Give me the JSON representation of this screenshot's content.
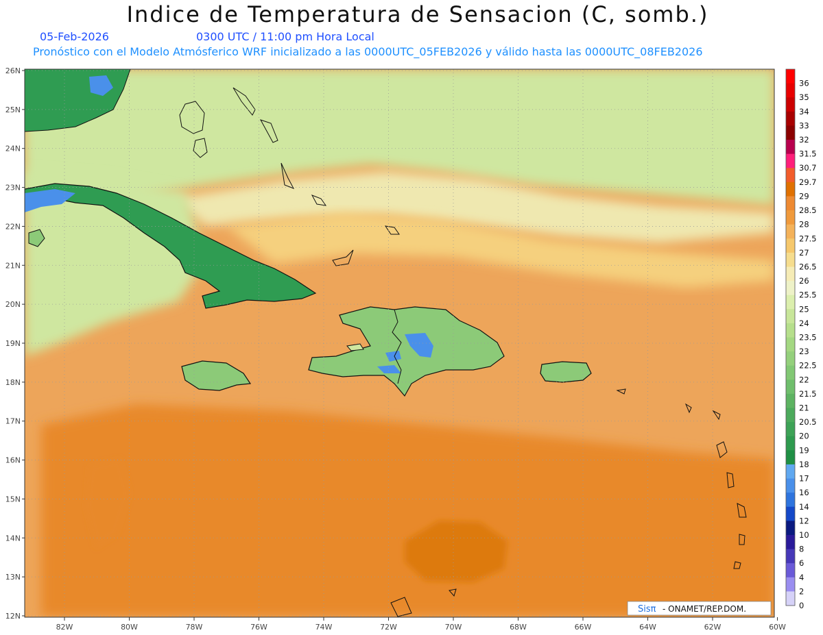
{
  "title": "Indice de Temperatura de Sensacion (C, somb.)",
  "date": "05-Feb-2026",
  "time": "0300 UTC / 11:00 pm Hora Local",
  "subtitle": "Pronóstico con el Modelo Atmósferico WRF inicializado a las 0000UTC_05FEB2026 y válido hasta las  0000UTC_08FEB2026",
  "lat_ticks": [
    "26N",
    "25N",
    "24N",
    "23N",
    "22N",
    "21N",
    "20N",
    "19N",
    "18N",
    "17N",
    "16N",
    "15N",
    "14N",
    "13N",
    "12N"
  ],
  "lon_ticks": [
    "82W",
    "80W",
    "78W",
    "76W",
    "74W",
    "72W",
    "70W",
    "68W",
    "66W",
    "64W",
    "62W",
    "60W"
  ],
  "colorbar": [
    {
      "label": "36",
      "color": "#ff0000"
    },
    {
      "label": "35",
      "color": "#e80000"
    },
    {
      "label": "34",
      "color": "#cc0000"
    },
    {
      "label": "33",
      "color": "#a80000"
    },
    {
      "label": "32",
      "color": "#8b0000"
    },
    {
      "label": "31.5",
      "color": "#b8004e"
    },
    {
      "label": "30.7",
      "color": "#ff1f7a"
    },
    {
      "label": "29.7",
      "color": "#f25c2b"
    },
    {
      "label": "29",
      "color": "#e07000"
    },
    {
      "label": "28.5",
      "color": "#ee8a32"
    },
    {
      "label": "28",
      "color": "#f09a3c"
    },
    {
      "label": "27.5",
      "color": "#f4b25a"
    },
    {
      "label": "27",
      "color": "#f6c86c"
    },
    {
      "label": "26.5",
      "color": "#f6dd8e"
    },
    {
      "label": "26",
      "color": "#f6ecb6"
    },
    {
      "label": "25.5",
      "color": "#eef2c8"
    },
    {
      "label": "25",
      "color": "#dcefae"
    },
    {
      "label": "24",
      "color": "#c8e69a"
    },
    {
      "label": "23.5",
      "color": "#b6df8c"
    },
    {
      "label": "23",
      "color": "#a4d882"
    },
    {
      "label": "22.5",
      "color": "#94d07c"
    },
    {
      "label": "22",
      "color": "#82c874"
    },
    {
      "label": "21.5",
      "color": "#6fbe6c"
    },
    {
      "label": "21",
      "color": "#5db362"
    },
    {
      "label": "20.5",
      "color": "#4caa5c"
    },
    {
      "label": "20",
      "color": "#3da256"
    },
    {
      "label": "19",
      "color": "#2e9a4e"
    },
    {
      "label": "18",
      "color": "#1f8f44"
    },
    {
      "label": "17",
      "color": "#60a8f0"
    },
    {
      "label": "16",
      "color": "#4a90ea"
    },
    {
      "label": "14",
      "color": "#2e74de"
    },
    {
      "label": "12",
      "color": "#1448c8"
    },
    {
      "label": "10",
      "color": "#0a1a80"
    },
    {
      "label": "8",
      "color": "#2a1a9a"
    },
    {
      "label": "6",
      "color": "#4638b8"
    },
    {
      "label": "4",
      "color": "#6a5ad8"
    },
    {
      "label": "2",
      "color": "#9a8ef0"
    },
    {
      "label": "0",
      "color": "#d6d2f8"
    }
  ],
  "colors": {
    "warm_bg": "#eda55a",
    "hot": "#e8892c",
    "hotter": "#dd7a10",
    "mild": "#f5d07e",
    "pale": "#efe8b0",
    "lightgreen": "#cfe7a0",
    "green": "#8cca78",
    "darkgreen": "#2f9c52",
    "cold": "#4a90ea"
  },
  "logo": {
    "part1": "Sisπ",
    "part2": " - ONAMET/REP.DOM."
  }
}
